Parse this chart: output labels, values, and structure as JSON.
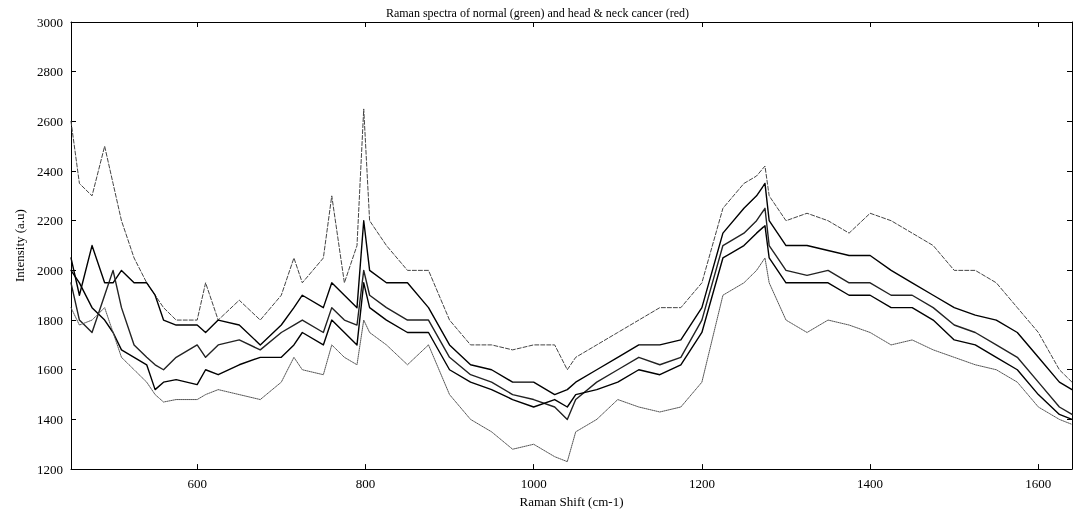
{
  "chart_data": {
    "type": "line",
    "title": "Raman spectra of normal (green) and head & neck cancer (red)",
    "xlabel": "Raman Shift (cm-1)",
    "ylabel": "Intensity (a.u)",
    "x": [
      450,
      460,
      475,
      490,
      500,
      510,
      525,
      540,
      550,
      560,
      575,
      600,
      610,
      625,
      650,
      675,
      700,
      715,
      725,
      750,
      760,
      775,
      790,
      798,
      805,
      825,
      850,
      875,
      900,
      925,
      950,
      975,
      1000,
      1025,
      1040,
      1050,
      1075,
      1100,
      1125,
      1150,
      1175,
      1200,
      1225,
      1250,
      1265,
      1275,
      1280,
      1300,
      1325,
      1350,
      1375,
      1400,
      1425,
      1450,
      1475,
      1500,
      1525,
      1550,
      1575,
      1600,
      1625,
      1640
    ],
    "xlim": [
      450,
      1640
    ],
    "xticks": [
      600,
      800,
      1000,
      1200,
      1400,
      1600
    ],
    "ylim": [
      1200,
      3000
    ],
    "yticks": [
      1200,
      1400,
      1600,
      1800,
      2000,
      2200,
      2400,
      2600,
      2800,
      3000
    ],
    "grid": false,
    "marker": "none",
    "series": [
      {
        "color": "#444444",
        "line_style": "dashed",
        "values": [
          2600,
          2350,
          2300,
          2500,
          2350,
          2200,
          2050,
          1950,
          1900,
          1850,
          1800,
          1800,
          1950,
          1800,
          1880,
          1800,
          1900,
          2050,
          1950,
          2050,
          2300,
          1950,
          2100,
          2650,
          2200,
          2100,
          2000,
          2000,
          1800,
          1700,
          1700,
          1680,
          1700,
          1700,
          1600,
          1650,
          1700,
          1750,
          1800,
          1850,
          1850,
          1950,
          2250,
          2350,
          2380,
          2420,
          2300,
          2200,
          2230,
          2200,
          2150,
          2230,
          2200,
          2150,
          2100,
          2000,
          2000,
          1950,
          1850,
          1750,
          1600,
          1550
        ]
      },
      {
        "color": "#000000",
        "line_style": "solid",
        "values": [
          2050,
          1900,
          2100,
          1950,
          1950,
          2000,
          1950,
          1950,
          1900,
          1800,
          1780,
          1780,
          1750,
          1800,
          1780,
          1700,
          1780,
          1850,
          1900,
          1850,
          1950,
          1900,
          1850,
          2200,
          2000,
          1950,
          1950,
          1850,
          1700,
          1620,
          1600,
          1550,
          1550,
          1500,
          1520,
          1550,
          1600,
          1650,
          1700,
          1700,
          1720,
          1850,
          2150,
          2250,
          2300,
          2350,
          2200,
          2100,
          2100,
          2080,
          2060,
          2060,
          2000,
          1950,
          1900,
          1850,
          1820,
          1800,
          1750,
          1650,
          1550,
          1520
        ]
      },
      {
        "color": "#222222",
        "line_style": "solid",
        "values": [
          1950,
          1800,
          1750,
          1900,
          2000,
          1850,
          1700,
          1650,
          1620,
          1600,
          1650,
          1700,
          1650,
          1700,
          1720,
          1680,
          1750,
          1780,
          1800,
          1750,
          1850,
          1800,
          1780,
          2000,
          1900,
          1850,
          1800,
          1800,
          1650,
          1580,
          1550,
          1500,
          1480,
          1450,
          1400,
          1480,
          1550,
          1600,
          1650,
          1620,
          1650,
          1800,
          2100,
          2150,
          2200,
          2250,
          2100,
          2000,
          1980,
          2000,
          1950,
          1950,
          1900,
          1900,
          1850,
          1780,
          1750,
          1700,
          1650,
          1550,
          1450,
          1420
        ]
      },
      {
        "color": "#000000",
        "line_style": "solid",
        "values": [
          2000,
          1950,
          1850,
          1800,
          1750,
          1680,
          1650,
          1620,
          1520,
          1550,
          1560,
          1540,
          1600,
          1580,
          1620,
          1650,
          1650,
          1700,
          1750,
          1700,
          1800,
          1750,
          1700,
          1950,
          1850,
          1800,
          1750,
          1750,
          1600,
          1550,
          1520,
          1480,
          1450,
          1480,
          1450,
          1500,
          1520,
          1550,
          1600,
          1580,
          1620,
          1750,
          2050,
          2100,
          2150,
          2180,
          2050,
          1950,
          1950,
          1950,
          1900,
          1900,
          1850,
          1850,
          1800,
          1720,
          1700,
          1650,
          1600,
          1500,
          1420,
          1400
        ]
      },
      {
        "color": "#555555",
        "line_style": "dotted",
        "values": [
          1850,
          1780,
          1800,
          1850,
          1750,
          1650,
          1600,
          1550,
          1500,
          1470,
          1480,
          1480,
          1500,
          1520,
          1500,
          1480,
          1550,
          1650,
          1600,
          1580,
          1700,
          1650,
          1620,
          1800,
          1750,
          1700,
          1620,
          1700,
          1500,
          1400,
          1350,
          1280,
          1300,
          1250,
          1230,
          1350,
          1400,
          1480,
          1450,
          1430,
          1450,
          1550,
          1900,
          1950,
          2000,
          2050,
          1950,
          1800,
          1750,
          1800,
          1780,
          1750,
          1700,
          1720,
          1680,
          1650,
          1620,
          1600,
          1550,
          1450,
          1400,
          1380
        ]
      }
    ]
  }
}
